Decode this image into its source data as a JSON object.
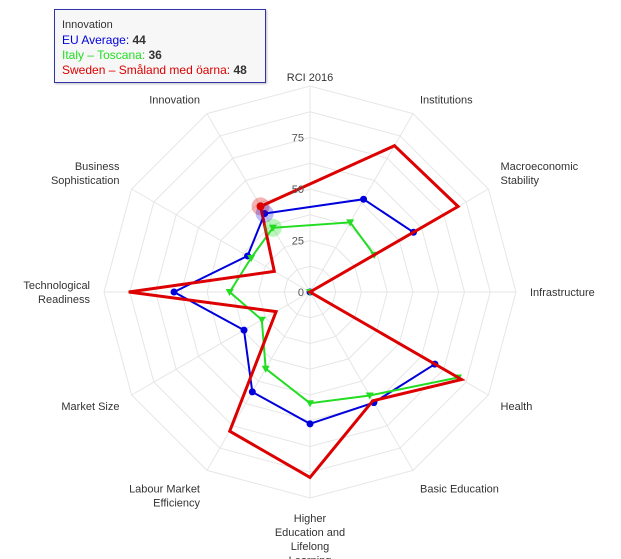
{
  "chart_data": {
    "type": "radar",
    "title": "RCI 2016",
    "axes": [
      "Institutions",
      "Macroeconomic Stability",
      "Infrastructure",
      "Health",
      "Basic Education",
      "Higher Education and Lifelong Learning",
      "Labour Market Efficiency",
      "Market Size",
      "Technological Readiness",
      "Business Sophistication",
      "Innovation"
    ],
    "axis_lines": [
      [
        "Institutions"
      ],
      [
        "Macroeconomic",
        "Stability"
      ],
      [
        "Infrastructure"
      ],
      [
        "Health"
      ],
      [
        "Basic Education"
      ],
      [
        "Higher",
        "Education and",
        "Lifelong",
        "Learning"
      ],
      [
        "Labour Market",
        "Efficiency"
      ],
      [
        "Market Size"
      ],
      [
        "Technological",
        "Readiness"
      ],
      [
        "Business",
        "Sophistication"
      ],
      [
        "Innovation"
      ]
    ],
    "tick_labels": [
      "0",
      "25",
      "50",
      "75"
    ],
    "tick_values": [
      0,
      25,
      50,
      75
    ],
    "range": [
      0,
      100
    ],
    "grid": true,
    "series": [
      {
        "name": "EU Average",
        "color": "#0000dd",
        "marker": "circle",
        "values": [
          52,
          58,
          0,
          70,
          62,
          64,
          56,
          37,
          66,
          35,
          44
        ]
      },
      {
        "name": "Italy – Toscana",
        "color": "#22dd22",
        "marker": "triangle-down",
        "values": [
          39,
          36,
          0,
          83,
          58,
          54,
          43,
          27,
          39,
          33,
          36
        ]
      },
      {
        "name": "Sweden – Småland med öarna",
        "color": "#dd0000",
        "marker": "none",
        "values": [
          82,
          83,
          0,
          85,
          61,
          90,
          78,
          19,
          88,
          20,
          48
        ]
      }
    ]
  },
  "tooltip": {
    "title": "Innovation",
    "rows": [
      {
        "label": "EU Average",
        "value": "44",
        "color": "#0000dd"
      },
      {
        "label": "Italy – Toscana",
        "value": "36",
        "color": "#22dd22"
      },
      {
        "label": "Sweden – Småland med öarna",
        "value": "48",
        "color": "#dd0000"
      }
    ]
  }
}
